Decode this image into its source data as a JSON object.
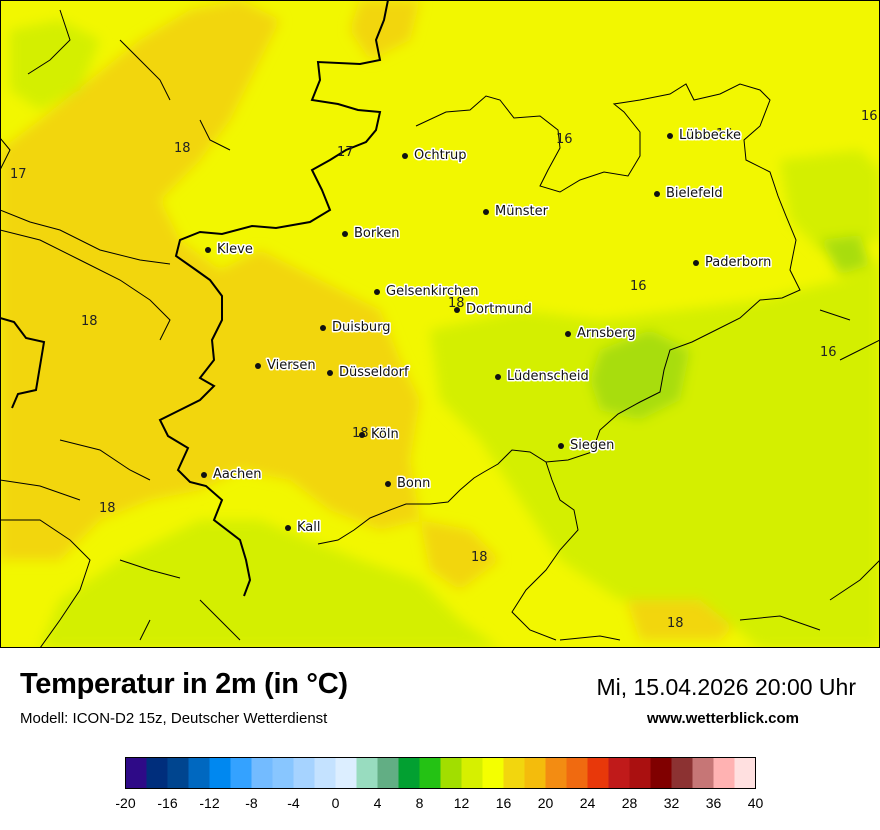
{
  "map": {
    "colors": {
      "warm_yellow": "#f2d60e",
      "yellow": "#f2f700",
      "yellow_green": "#d4ef00",
      "light_green": "#a8dd0c",
      "border": "#000000"
    },
    "cities": [
      {
        "name": "Ochtrup"
      },
      {
        "name": "Lübbecke"
      },
      {
        "name": "Bielefeld"
      },
      {
        "name": "Münster"
      },
      {
        "name": "Borken"
      },
      {
        "name": "Kleve"
      },
      {
        "name": "Paderborn"
      },
      {
        "name": "Gelsenkirchen"
      },
      {
        "name": "Dortmund"
      },
      {
        "name": "Duisburg"
      },
      {
        "name": "Arnsberg"
      },
      {
        "name": "Viersen"
      },
      {
        "name": "Düsseldorf"
      },
      {
        "name": "Lüdenscheid"
      },
      {
        "name": "Köln"
      },
      {
        "name": "Siegen"
      },
      {
        "name": "Aachen"
      },
      {
        "name": "Bonn"
      },
      {
        "name": "Kall"
      }
    ],
    "isotherm_labels": [
      "18",
      "17",
      "17",
      "16",
      "16",
      "16",
      "16",
      "18",
      "18",
      "16",
      "18",
      "18",
      "18",
      "18"
    ]
  },
  "footer": {
    "title": "Temperatur in 2m (in °C)",
    "model": "Modell: ICON-D2 15z, Deutscher Wetterdienst",
    "datetime": "Mi, 15.04.2026 20:00 Uhr",
    "website": "www.wetterblick.com"
  },
  "legend": {
    "unit": "°C",
    "min": -20,
    "max": 40,
    "step": 2,
    "tick_labels": [
      "-20",
      "-16",
      "-12",
      "-8",
      "-4",
      "0",
      "4",
      "8",
      "12",
      "16",
      "20",
      "24",
      "28",
      "32",
      "36",
      "40"
    ],
    "colors": [
      "#2e0a87",
      "#002e7c",
      "#00458f",
      "#0068c0",
      "#0088f0",
      "#34a2ff",
      "#73bbff",
      "#88c6ff",
      "#a6d3ff",
      "#c4e2ff",
      "#dceeff",
      "#98dcbf",
      "#62ae84",
      "#02a031",
      "#24c214",
      "#a2de00",
      "#d6f000",
      "#f4ff00",
      "#f2d60e",
      "#f4bc0c",
      "#f38c12",
      "#f06a10",
      "#e8380a",
      "#c01a1a",
      "#aa1010",
      "#800000",
      "#8c3232",
      "#c67676",
      "#ffb2b2",
      "#ffe0e0"
    ]
  }
}
